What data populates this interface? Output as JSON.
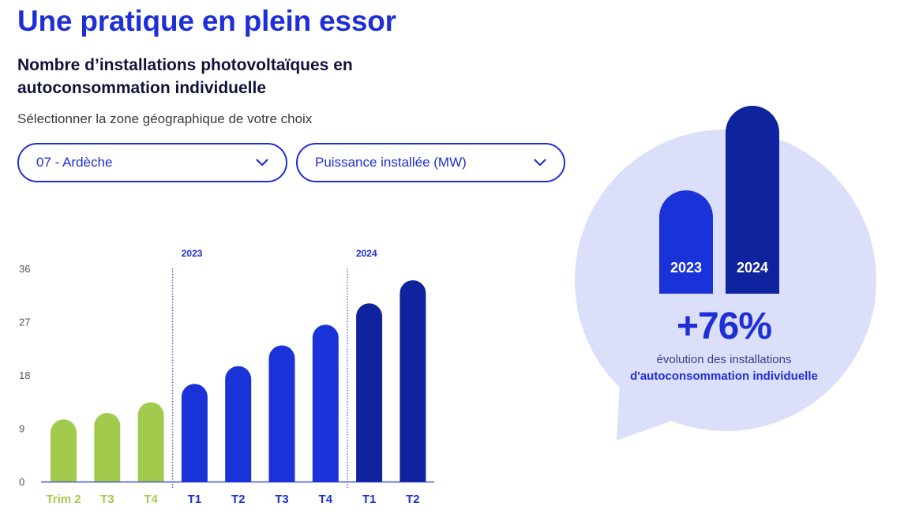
{
  "page": {
    "title": "Une pratique en plein essor",
    "chart_heading": "Nombre d’installations photovoltaïques en autoconsommation individuelle",
    "zone_instruction": "Sélectionner la zone géographique de votre choix"
  },
  "filters": {
    "zone": "07 - Ardèche",
    "metric": "Puissance installée (MW)"
  },
  "colors": {
    "accent": "#1f2fd6",
    "green": "#a2cb4d",
    "blue_2023": "#1a33d9",
    "navy_2024": "#10239e",
    "bubble_bg": "#dcdffa"
  },
  "icons": {
    "dropdown": "chevron-down-icon"
  },
  "chart_data": {
    "type": "bar",
    "categories": [
      "Trim 2",
      "T3",
      "T4",
      "T1",
      "T2",
      "T3",
      "T4",
      "T1",
      "T2"
    ],
    "values": [
      10.5,
      11.6,
      13.4,
      16.5,
      19.5,
      23.0,
      26.5,
      30.1,
      34.0
    ],
    "groups": [
      "prior",
      "prior",
      "prior",
      "2023",
      "2023",
      "2023",
      "2023",
      "2024",
      "2024"
    ],
    "group_labels": {
      "2023": "2023",
      "2024": "2024"
    },
    "ylim": [
      0,
      36
    ],
    "yticks": [
      0,
      9,
      18,
      27,
      36
    ],
    "grid": false,
    "title": "",
    "xlabel": "",
    "ylabel": ""
  },
  "highlight": {
    "bars": [
      {
        "label": "2023",
        "relative": 0.55
      },
      {
        "label": "2024",
        "relative": 1.0
      }
    ],
    "percent": "+76%",
    "caption_line1": "évolution des installations",
    "caption_line2": "d'autoconsommation individuelle"
  }
}
